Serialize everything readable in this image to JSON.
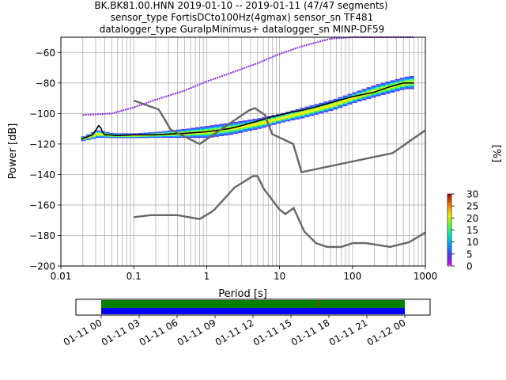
{
  "title_lines": [
    "BK.BK81.00.HNN   2019-01-10 -- 2019-01-11  (47/47 segments)",
    "sensor_type FortisDCto100Hz(4gmax) sensor_sn TF481",
    "datalogger_type GuralpMinimus+ datalogger_sn MINP-DF59"
  ],
  "chart_data": [
    {
      "type": "heatmap",
      "title": "BK.BK81.00.HNN   2019-01-10 -- 2019-01-11  (47/47 segments)",
      "xlabel": "Period [s]",
      "ylabel": "Power [dB]",
      "xscale": "log",
      "xlim": [
        0.01,
        1000
      ],
      "ylim": [
        -200,
        -50
      ],
      "grid": true,
      "x_ticks": [
        {
          "v": 0.01,
          "label": "0.01"
        },
        {
          "v": 0.1,
          "label": "0.1"
        },
        {
          "v": 1,
          "label": "1"
        },
        {
          "v": 10,
          "label": "10"
        },
        {
          "v": 100,
          "label": "100"
        },
        {
          "v": 1000,
          "label": "1000"
        }
      ],
      "y_ticks": [
        {
          "v": -200,
          "label": "−200"
        },
        {
          "v": -180,
          "label": "−180"
        },
        {
          "v": -160,
          "label": "−160"
        },
        {
          "v": -140,
          "label": "−140"
        },
        {
          "v": -120,
          "label": "−120"
        },
        {
          "v": -100,
          "label": "−100"
        },
        {
          "v": -80,
          "label": "−80"
        },
        {
          "v": -60,
          "label": "−60"
        }
      ],
      "colorbar": {
        "label": "[%]",
        "range": [
          0,
          30
        ],
        "ticks": [
          {
            "v": 0,
            "label": "0"
          },
          {
            "v": 5,
            "label": "5"
          },
          {
            "v": 10,
            "label": "10"
          },
          {
            "v": 15,
            "label": "15"
          },
          {
            "v": 20,
            "label": "20"
          },
          {
            "v": 25,
            "label": "25"
          },
          {
            "v": 30,
            "label": "30"
          }
        ]
      },
      "series": [
        {
          "role": "mode",
          "color": "#000000",
          "x": [
            0.019,
            0.021,
            0.024,
            0.027,
            0.029,
            0.031,
            0.033,
            0.035,
            0.037,
            0.04,
            0.045,
            0.06,
            0.1,
            0.2,
            0.3,
            0.5,
            1,
            2,
            3,
            5,
            8,
            10,
            15,
            20,
            30,
            50,
            70,
            100,
            200,
            300,
            500,
            700
          ],
          "y": [
            -117,
            -116,
            -115,
            -114,
            -112,
            -110,
            -108,
            -109,
            -112,
            -114,
            -114,
            -114.5,
            -114,
            -114,
            -113.5,
            -113,
            -112,
            -110,
            -108,
            -105,
            -102,
            -101,
            -99,
            -98,
            -96,
            -93,
            -91,
            -89,
            -86,
            -83,
            -80,
            -80
          ]
        },
        {
          "role": "noise-model-upper",
          "color": "#666666",
          "x": [
            0.1,
            0.22,
            0.32,
            0.8,
            3.8,
            4.6,
            6.3,
            7.9,
            15.4,
            20,
            354.8,
            1000
          ],
          "y": [
            -91.5,
            -97.4,
            -110.5,
            -120,
            -98.0,
            -96.5,
            -101.0,
            -113.5,
            -120.0,
            -138.5,
            -126.0,
            -111.0
          ]
        },
        {
          "role": "noise-model-lower",
          "color": "#666666",
          "x": [
            0.1,
            0.17,
            0.4,
            0.8,
            1.24,
            2.4,
            4.3,
            5.0,
            6.0,
            10.0,
            12.0,
            15.6,
            21.9,
            31.6,
            45.0,
            70.0,
            101.0,
            154.0,
            328.0,
            600.0,
            1000.0
          ],
          "y": [
            -168.0,
            -166.7,
            -166.7,
            -169.2,
            -163.7,
            -148.6,
            -141.1,
            -141.1,
            -149.0,
            -163.0,
            -166.0,
            -162.0,
            -177.5,
            -185.0,
            -187.5,
            -187.5,
            -185.0,
            -185.0,
            -187.5,
            -184.4,
            -178.0
          ]
        },
        {
          "role": "clipping-band",
          "color": "#8a2be2",
          "x": [
            0.02,
            0.05,
            0.1,
            0.2,
            0.5,
            1,
            2,
            5,
            10,
            20,
            50,
            100,
            200,
            500,
            700
          ],
          "y": [
            -101,
            -100,
            -96,
            -91,
            -85,
            -79,
            -74,
            -67,
            -61,
            -56,
            -51,
            -50,
            -50,
            -50,
            -50
          ]
        }
      ],
      "density_band": {
        "x": [
          0.019,
          0.03,
          0.05,
          0.1,
          0.2,
          0.5,
          1,
          2,
          5,
          10,
          20,
          50,
          100,
          200,
          500,
          700
        ],
        "upper": [
          -115,
          -111,
          -113,
          -113,
          -112,
          -110,
          -108,
          -106,
          -103,
          -100,
          -96,
          -91,
          -86,
          -81,
          -76,
          -75
        ],
        "lower": [
          -118,
          -116,
          -116,
          -116,
          -116,
          -116,
          -116,
          -114,
          -110,
          -106,
          -103,
          -98,
          -93,
          -89,
          -84,
          -84
        ]
      }
    },
    {
      "type": "timeline",
      "title": "",
      "x_ticks": [
        "01-11 00",
        "01-11 03",
        "01-11 06",
        "01-11 09",
        "01-11 12",
        "01-11 15",
        "01-11 18",
        "01-11 21",
        "01-12 00"
      ],
      "x_range_hours": [
        -2,
        26
      ],
      "segments": [
        {
          "start_hour": 0,
          "end_hour": 24,
          "color": "#008000"
        },
        {
          "start_hour": 0,
          "end_hour": 24,
          "color": "#0000ff"
        }
      ],
      "marker_hour": 17.2,
      "marker_color": "#ff0000"
    }
  ]
}
